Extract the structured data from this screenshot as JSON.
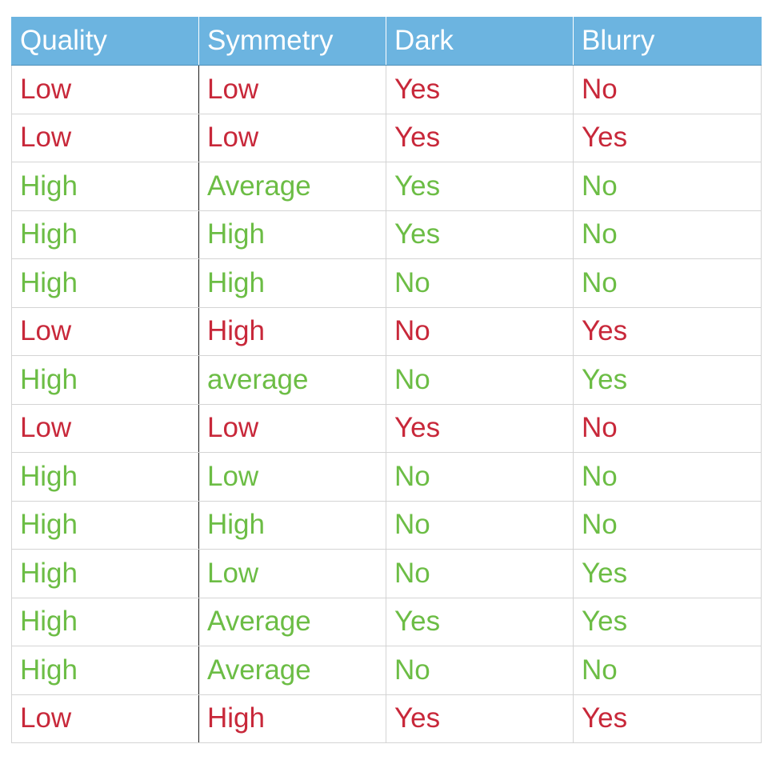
{
  "colors": {
    "header_bg": "#6cb4e0",
    "low_row_text": "#c8283a",
    "high_row_text": "#6cbd45"
  },
  "table": {
    "headers": [
      "Quality",
      "Symmetry",
      "Dark",
      "Blurry"
    ],
    "rows": [
      {
        "tone": "low",
        "cells": [
          "Low",
          "Low",
          "Yes",
          "No"
        ]
      },
      {
        "tone": "low",
        "cells": [
          "Low",
          "Low",
          "Yes",
          "Yes"
        ]
      },
      {
        "tone": "high",
        "cells": [
          "High",
          "Average",
          "Yes",
          "No"
        ]
      },
      {
        "tone": "high",
        "cells": [
          "High",
          "High",
          "Yes",
          "No"
        ]
      },
      {
        "tone": "high",
        "cells": [
          "High",
          "High",
          "No",
          "No"
        ]
      },
      {
        "tone": "low",
        "cells": [
          "Low",
          "High",
          "No",
          "Yes"
        ]
      },
      {
        "tone": "high",
        "cells": [
          "High",
          "average",
          "No",
          "Yes"
        ]
      },
      {
        "tone": "low",
        "cells": [
          "Low",
          "Low",
          "Yes",
          "No"
        ]
      },
      {
        "tone": "high",
        "cells": [
          "High",
          "Low",
          "No",
          "No"
        ]
      },
      {
        "tone": "high",
        "cells": [
          "High",
          "High",
          "No",
          "No"
        ]
      },
      {
        "tone": "high",
        "cells": [
          "High",
          "Low",
          "No",
          "Yes"
        ]
      },
      {
        "tone": "high",
        "cells": [
          "High",
          "Average",
          "Yes",
          "Yes"
        ]
      },
      {
        "tone": "high",
        "cells": [
          "High",
          "Average",
          "No",
          "No"
        ]
      },
      {
        "tone": "low",
        "cells": [
          "Low",
          "High",
          "Yes",
          "Yes"
        ]
      }
    ]
  }
}
